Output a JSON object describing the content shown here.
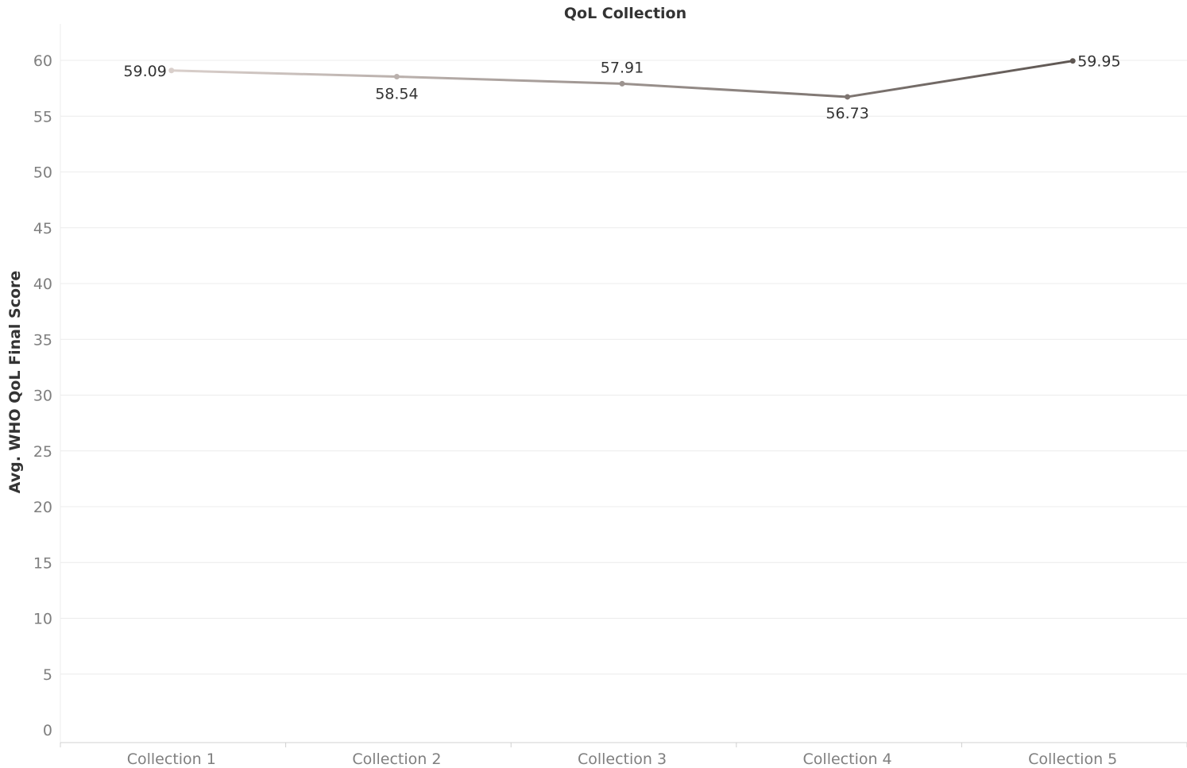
{
  "chart_data": {
    "type": "line",
    "title": "QoL Collection",
    "xlabel": "",
    "ylabel": "Avg. WHO QoL Final Score",
    "categories": [
      "Collection 1",
      "Collection 2",
      "Collection 3",
      "Collection 4",
      "Collection 5"
    ],
    "values": [
      59.09,
      58.54,
      57.91,
      56.73,
      59.95
    ],
    "data_labels": [
      "59.09",
      "58.54",
      "57.91",
      "56.73",
      "59.95"
    ],
    "y_ticks": [
      0,
      5,
      10,
      15,
      20,
      25,
      30,
      35,
      40,
      45,
      50,
      55,
      60
    ],
    "ylim": [
      0,
      63
    ],
    "grid": true,
    "legend": "none",
    "colors": {
      "line_start": "#d9cfcb",
      "line_end": "#5e5652",
      "grid": "#ececec",
      "axis": "#d0d0d0"
    }
  }
}
